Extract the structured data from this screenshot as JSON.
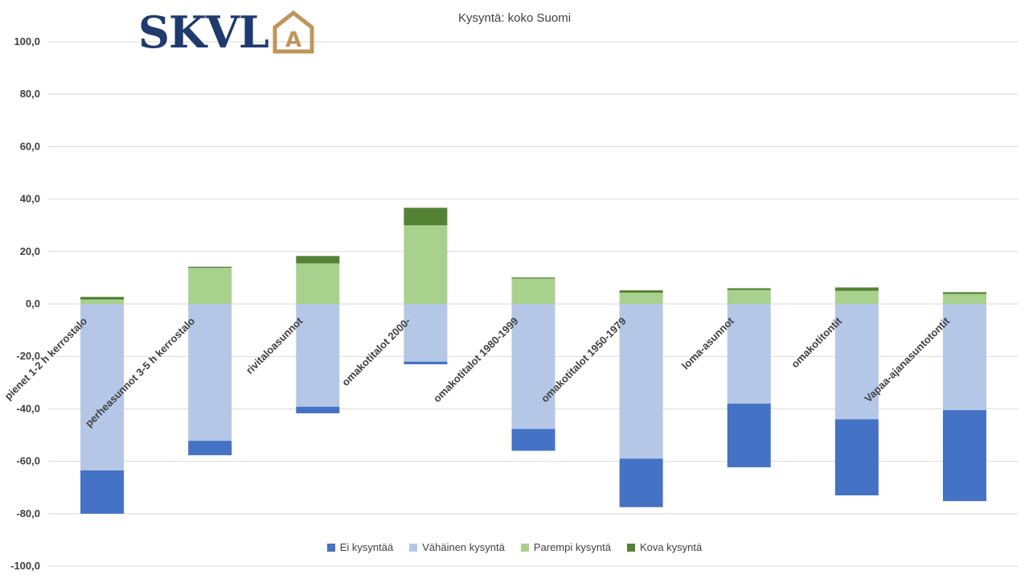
{
  "logo": {
    "text": "SKVL",
    "mark": "A"
  },
  "chart_data": {
    "type": "bar",
    "stacked": true,
    "title": "Kysyntä: koko Suomi",
    "xlabel": "",
    "ylabel": "",
    "ylim": [
      -100,
      100
    ],
    "yticks": [
      "100,0",
      "80,0",
      "60,0",
      "40,0",
      "20,0",
      "0,0",
      "-20,0",
      "-40,0",
      "-60,0",
      "-80,0",
      "-100,0"
    ],
    "grid": true,
    "legend_position": "bottom",
    "categories": [
      "pienet 1-2 h kerrostalo",
      "perheasunnot 3-5 h kerrostalo",
      "rivitaloasunnot",
      "omakotitalot 2000-",
      "omakotitalot 1980-1999",
      "omakotitalot 1950-1979",
      "loma-asunnot",
      "omakotitontit",
      "Vapaa-ajanasuntotontit"
    ],
    "series": [
      {
        "name": "Ei kysyntää",
        "color": "#4472c4",
        "values": [
          -16.5,
          -5.5,
          -2.5,
          -1,
          -8.3,
          -18.5,
          -24.3,
          -29,
          -34.7
        ]
      },
      {
        "name": "Vähäinen kysyntä",
        "color": "#b4c7e7",
        "values": [
          -63.5,
          -52.2,
          -39.2,
          -22,
          -47.7,
          -59,
          -38,
          -44,
          -40.5
        ]
      },
      {
        "name": "Parempi kysyntä",
        "color": "#a9d18e",
        "values": [
          1.7,
          13.8,
          15.5,
          30,
          9.7,
          4.3,
          5.3,
          5,
          3.8
        ]
      },
      {
        "name": "Kova kysyntä",
        "color": "#548235",
        "values": [
          1,
          0.4,
          2.8,
          6.7,
          0.4,
          0.9,
          0.7,
          1.3,
          0.7
        ]
      }
    ]
  }
}
